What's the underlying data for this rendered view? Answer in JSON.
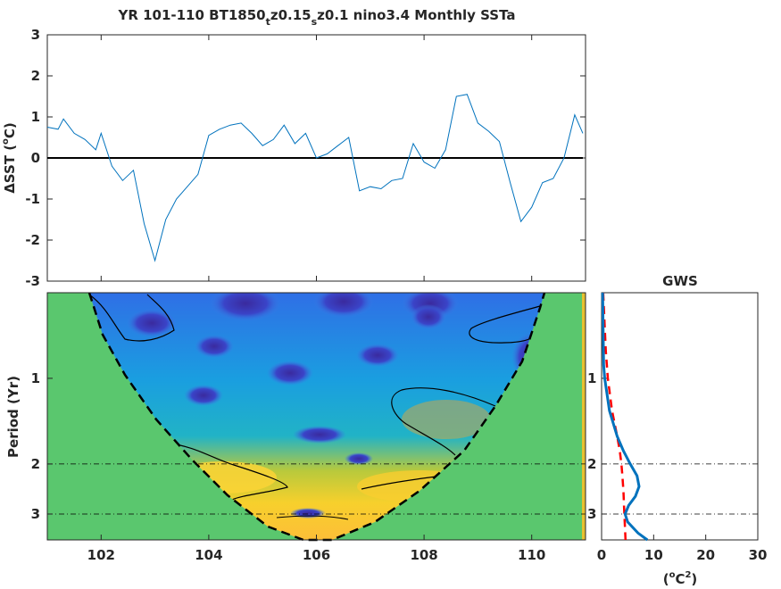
{
  "title": {
    "p1": "YR 101-110 BT1850",
    "s1": "t",
    "p2": "z0.15",
    "s2": "s",
    "p3": "z0.1 nino3.4 Monthly SSTa"
  },
  "ts_ylabel": {
    "prefix": "ΔSST (",
    "deg": "o",
    "suffix": "C)"
  },
  "wv_ylabel": "Period (Yr)",
  "gws_title": "GWS",
  "gws_xlabel": {
    "prefix": "(",
    "deg": "o",
    "mid": "C",
    "sq": "2",
    "suffix": ")"
  },
  "chart_data": [
    {
      "type": "line",
      "name": "timeseries",
      "xlim": [
        101,
        111
      ],
      "ylim": [
        -3,
        3
      ],
      "yticks": [
        "-3",
        "-2",
        "-1",
        "0",
        "1",
        "2",
        "3"
      ],
      "xtick_values": [
        102,
        104,
        106,
        108,
        110
      ],
      "zero_line": true,
      "color": "#0072bd",
      "x": [
        101.0,
        101.2,
        101.3,
        101.5,
        101.7,
        101.9,
        102.0,
        102.2,
        102.4,
        102.6,
        102.8,
        103.0,
        103.2,
        103.4,
        103.6,
        103.8,
        104.0,
        104.2,
        104.4,
        104.6,
        104.8,
        105.0,
        105.2,
        105.4,
        105.6,
        105.8,
        106.0,
        106.2,
        106.4,
        106.6,
        106.8,
        107.0,
        107.2,
        107.4,
        107.6,
        107.8,
        108.0,
        108.2,
        108.4,
        108.6,
        108.8,
        109.0,
        109.2,
        109.4,
        109.6,
        109.8,
        110.0,
        110.2,
        110.4,
        110.6,
        110.8,
        110.95
      ],
      "y": [
        0.75,
        0.7,
        0.95,
        0.6,
        0.45,
        0.2,
        0.6,
        -0.2,
        -0.55,
        -0.3,
        -1.6,
        -2.5,
        -1.5,
        -1.0,
        -0.7,
        -0.4,
        0.55,
        0.7,
        0.8,
        0.85,
        0.6,
        0.3,
        0.45,
        0.8,
        0.35,
        0.6,
        0.0,
        0.1,
        0.3,
        0.5,
        -0.8,
        -0.7,
        -0.75,
        -0.55,
        -0.5,
        0.35,
        -0.1,
        -0.25,
        0.2,
        1.5,
        1.55,
        0.85,
        0.65,
        0.4,
        -0.6,
        -1.55,
        -1.2,
        -0.6,
        -0.5,
        0.0,
        1.05,
        0.6
      ]
    },
    {
      "type": "heatmap",
      "name": "wavelet power spectrum",
      "xlim": [
        101,
        111
      ],
      "ylabel": "Period (Yr)",
      "yticks": [
        "1",
        "2",
        "3"
      ],
      "xticks": [
        "102",
        "104",
        "106",
        "108",
        "110"
      ],
      "period_range": [
        0.5,
        3.7
      ],
      "dashed_reference_periods": [
        2,
        3
      ],
      "cone_of_influence": true,
      "colormap": "parula"
    },
    {
      "type": "line",
      "name": "global wavelet spectrum",
      "title": "GWS",
      "xlim": [
        0,
        30
      ],
      "xticks": [
        "0",
        "10",
        "20",
        "30"
      ],
      "yticks": [
        "1",
        "2",
        "3"
      ],
      "dashed_reference_periods": [
        2,
        3
      ],
      "series": [
        {
          "style": "solid",
          "color": "#0072bd",
          "period": [
            0.5,
            0.7,
            0.9,
            1.0,
            1.3,
            1.6,
            1.8,
            2.0,
            2.2,
            2.4,
            2.6,
            2.8,
            3.0,
            3.2,
            3.5,
            3.7
          ],
          "power": [
            0.2,
            0.3,
            0.4,
            0.6,
            1.5,
            3.0,
            4.2,
            5.5,
            6.8,
            7.2,
            6.5,
            5.2,
            4.5,
            5.0,
            7.0,
            8.8
          ]
        },
        {
          "style": "dashed",
          "color": "#ff0000",
          "period": [
            0.5,
            0.8,
            1.0,
            1.3,
            1.6,
            1.8,
            2.0,
            2.2,
            2.5,
            2.8,
            3.1,
            3.4,
            3.7
          ],
          "power": [
            0.3,
            0.8,
            1.2,
            2.0,
            3.0,
            3.5,
            3.8,
            4.0,
            4.2,
            4.3,
            4.4,
            4.5,
            4.6
          ]
        }
      ]
    }
  ]
}
